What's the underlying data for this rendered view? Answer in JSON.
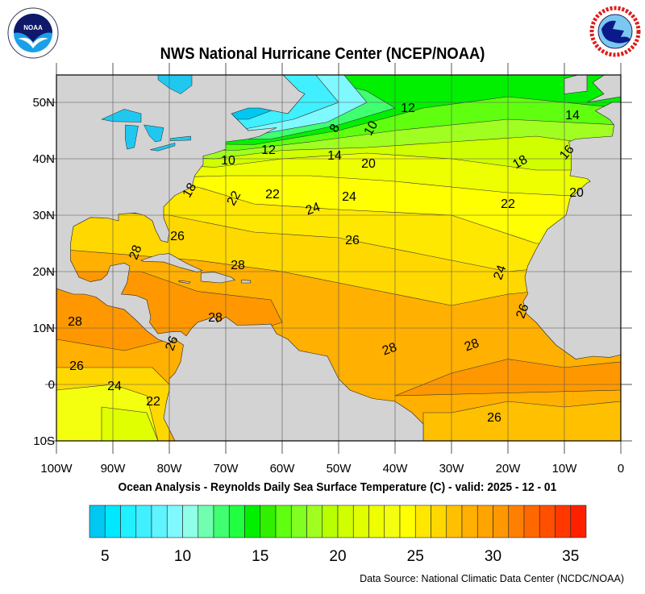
{
  "title": "NWS National Hurricane Center (NCEP/NOAA)",
  "subtitle": "Ocean Analysis - Reynolds Daily Sea Surface Temperature (C) - valid: 2025 - 12 - 01",
  "source": "Data Source: National Climatic Data Center (NCDC/NOAA)",
  "logos": {
    "left": "NOAA",
    "right": "NATIONAL WEATHER SERVICE"
  },
  "map": {
    "extent": {
      "lon": [
        -100,
        0
      ],
      "lat": [
        -10,
        55
      ]
    },
    "lon_ticks": [
      "100W",
      "90W",
      "80W",
      "70W",
      "60W",
      "50W",
      "40W",
      "30W",
      "20W",
      "10W",
      "0"
    ],
    "lat_ticks": [
      "50N",
      "40N",
      "30N",
      "20N",
      "10N",
      "0",
      "10S"
    ],
    "land_color": "#d3d3d3",
    "contour_labels": [
      "12",
      "14",
      "8",
      "10",
      "12",
      "14",
      "20",
      "16",
      "18",
      "10",
      "20",
      "18",
      "22",
      "22",
      "24",
      "24",
      "22",
      "26",
      "26",
      "28",
      "28",
      "24",
      "28",
      "28",
      "26",
      "26",
      "28",
      "28",
      "26",
      "24",
      "22",
      "26"
    ]
  },
  "colorbar": {
    "labels": [
      "5",
      "10",
      "15",
      "20",
      "25",
      "30",
      "35"
    ],
    "colors": [
      "#00c8f0",
      "#00e8ff",
      "#20f0ff",
      "#40f0ff",
      "#60f4ff",
      "#80f8ff",
      "#90ffe8",
      "#70ffb0",
      "#40ff70",
      "#20ff40",
      "#00f000",
      "#30f000",
      "#60ff10",
      "#80ff20",
      "#a0ff20",
      "#b8ff00",
      "#d0ff00",
      "#e0ff00",
      "#eeff00",
      "#f4ff10",
      "#ffff00",
      "#ffe800",
      "#ffd800",
      "#ffc000",
      "#ffb000",
      "#ffa400",
      "#ff9800",
      "#ff8000",
      "#ff6800",
      "#ff5000",
      "#ff3800",
      "#ff2000"
    ]
  }
}
